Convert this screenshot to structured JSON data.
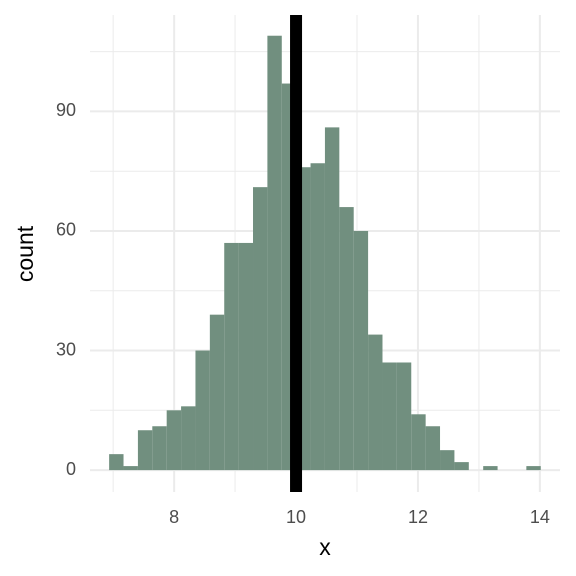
{
  "chart_data": {
    "type": "histogram",
    "xlabel": "x",
    "ylabel": "count",
    "bins": [
      6.934,
      7.17,
      7.406,
      7.642,
      7.878,
      8.114,
      8.35,
      8.586,
      8.822,
      9.058,
      9.294,
      9.53,
      9.766,
      10.002,
      10.238,
      10.474,
      10.71,
      10.946,
      11.182,
      11.418,
      11.654,
      11.89,
      12.126,
      12.362,
      12.598,
      12.834,
      13.07,
      13.306,
      13.542,
      13.778,
      14.014
    ],
    "values": [
      4,
      1,
      10,
      11,
      15,
      16,
      30,
      39,
      57,
      57,
      71,
      109,
      97,
      76,
      77,
      86,
      66,
      60,
      34,
      27,
      27,
      14,
      11,
      5,
      2,
      0,
      1,
      0,
      0,
      1
    ],
    "color": "#718f7f",
    "vline": 10,
    "vline_color": "#000000",
    "xlim": [
      6.62,
      14.33
    ],
    "xticks": [
      8,
      10,
      12,
      14
    ],
    "x_minor_grid": [
      7,
      9,
      11,
      13
    ],
    "ylim": [
      -5.5,
      114.2
    ],
    "yticks": [
      0,
      30,
      60,
      90
    ],
    "y_minor_grid": [
      15,
      45,
      75,
      105
    ],
    "grid": true
  }
}
